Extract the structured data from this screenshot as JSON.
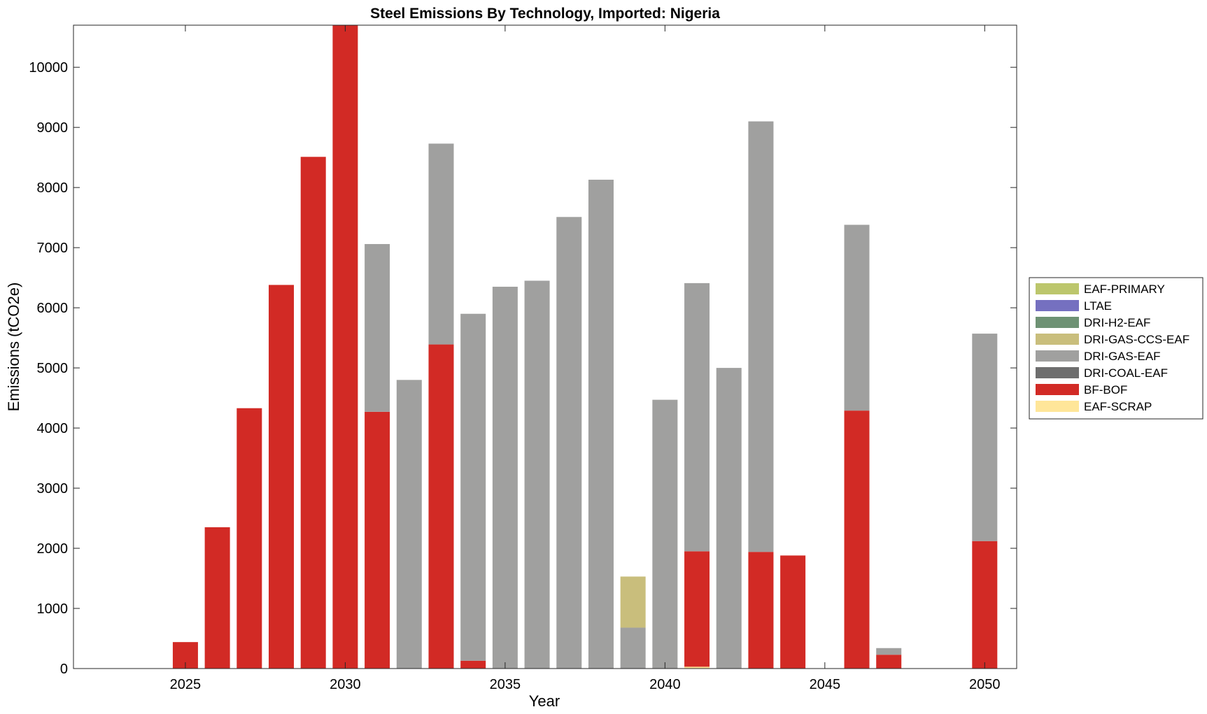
{
  "chart_data": {
    "type": "bar",
    "stacked": true,
    "title": "Steel Emissions By Technology, Imported: Nigeria",
    "xlabel": "Year",
    "ylabel": "Emissions (tCO2e)",
    "xlim": [
      2021.5,
      2051
    ],
    "ylim": [
      0,
      10700
    ],
    "xticks": [
      2025,
      2030,
      2035,
      2040,
      2045,
      2050
    ],
    "yticks": [
      0,
      1000,
      2000,
      3000,
      4000,
      5000,
      6000,
      7000,
      8000,
      9000,
      10000
    ],
    "legend_position": "outside-right",
    "categories": [
      2025,
      2026,
      2027,
      2028,
      2029,
      2030,
      2031,
      2032,
      2033,
      2034,
      2035,
      2036,
      2037,
      2038,
      2039,
      2040,
      2041,
      2042,
      2043,
      2044,
      2045,
      2046,
      2047,
      2048,
      2049,
      2050
    ],
    "series": [
      {
        "name": "EAF-SCRAP",
        "color": "#ffe699",
        "values": [
          0,
          0,
          0,
          0,
          0,
          0,
          0,
          0,
          0,
          0,
          0,
          0,
          0,
          0,
          0,
          0,
          30,
          0,
          0,
          0,
          0,
          0,
          0,
          0,
          0,
          0
        ]
      },
      {
        "name": "BF-BOF",
        "color": "#d22a25",
        "values": [
          440,
          2350,
          4330,
          6380,
          8510,
          10700,
          4270,
          0,
          5390,
          130,
          0,
          0,
          0,
          0,
          0,
          0,
          1920,
          0,
          1940,
          1880,
          0,
          4290,
          230,
          0,
          0,
          2120
        ]
      },
      {
        "name": "DRI-COAL-EAF",
        "color": "#6e6e6e",
        "values": [
          0,
          0,
          0,
          0,
          0,
          0,
          0,
          0,
          0,
          0,
          0,
          0,
          0,
          0,
          0,
          0,
          0,
          0,
          0,
          0,
          0,
          0,
          0,
          0,
          0,
          0
        ]
      },
      {
        "name": "DRI-GAS-EAF",
        "color": "#a0a09f",
        "values": [
          0,
          0,
          0,
          0,
          0,
          0,
          2790,
          4800,
          3340,
          5770,
          6350,
          6450,
          7510,
          8130,
          680,
          4470,
          4460,
          5000,
          7160,
          0,
          0,
          3090,
          110,
          0,
          0,
          3450
        ]
      },
      {
        "name": "DRI-GAS-CCS-EAF",
        "color": "#c9be7c",
        "values": [
          0,
          0,
          0,
          0,
          0,
          0,
          0,
          0,
          0,
          0,
          0,
          0,
          0,
          0,
          850,
          0,
          0,
          0,
          0,
          0,
          0,
          0,
          0,
          0,
          0,
          0
        ]
      },
      {
        "name": "DRI-H2-EAF",
        "color": "#6e9274",
        "values": [
          0,
          0,
          0,
          0,
          0,
          0,
          0,
          0,
          0,
          0,
          0,
          0,
          0,
          0,
          0,
          0,
          0,
          0,
          0,
          0,
          0,
          0,
          0,
          0,
          0,
          0
        ]
      },
      {
        "name": "LTAE",
        "color": "#7570c0",
        "values": [
          0,
          0,
          0,
          0,
          0,
          0,
          0,
          0,
          0,
          0,
          0,
          0,
          0,
          0,
          0,
          0,
          0,
          0,
          0,
          0,
          0,
          0,
          0,
          0,
          0,
          0
        ]
      },
      {
        "name": "EAF-PRIMARY",
        "color": "#bcc66c",
        "values": [
          0,
          0,
          0,
          0,
          0,
          0,
          0,
          0,
          0,
          0,
          0,
          0,
          0,
          0,
          0,
          0,
          0,
          0,
          0,
          0,
          0,
          0,
          0,
          0,
          0,
          0
        ]
      }
    ],
    "legend_order": [
      "EAF-PRIMARY",
      "LTAE",
      "DRI-H2-EAF",
      "DRI-GAS-CCS-EAF",
      "DRI-GAS-EAF",
      "DRI-COAL-EAF",
      "BF-BOF",
      "EAF-SCRAP"
    ]
  }
}
